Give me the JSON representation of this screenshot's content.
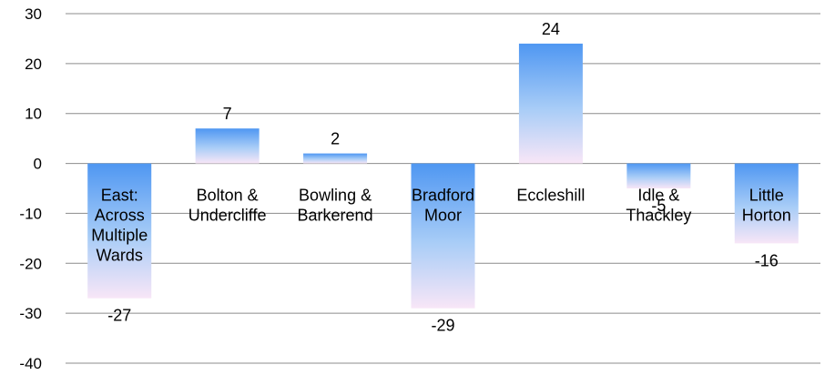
{
  "chart_data": {
    "type": "bar",
    "title": "",
    "xlabel": "",
    "ylabel": "",
    "ylim": [
      -40,
      30
    ],
    "yticks": [
      30,
      20,
      10,
      0,
      -10,
      -20,
      -30,
      -40
    ],
    "grid": true,
    "legend": "none",
    "categories": [
      [
        "East:",
        "Across",
        "Multiple",
        "Wards"
      ],
      [
        "Bolton &",
        "Undercliffe"
      ],
      [
        "Bowling &",
        "Barkerend"
      ],
      [
        "Bradford",
        "Moor"
      ],
      [
        "Eccleshill"
      ],
      [
        "Idle &",
        "Thackley"
      ],
      [
        "Little",
        "Horton"
      ]
    ],
    "values": [
      -27,
      7,
      2,
      -29,
      24,
      -5,
      -16
    ],
    "data_labels": [
      "-27",
      "7",
      "2",
      "-29",
      "24",
      "-5",
      "-16"
    ],
    "colors": {
      "bar_strong": "#4f97f2",
      "bar_mid": "#a9cdf7",
      "bar_light": "#f8e6f7",
      "gridline": "#8c8c8c"
    }
  }
}
